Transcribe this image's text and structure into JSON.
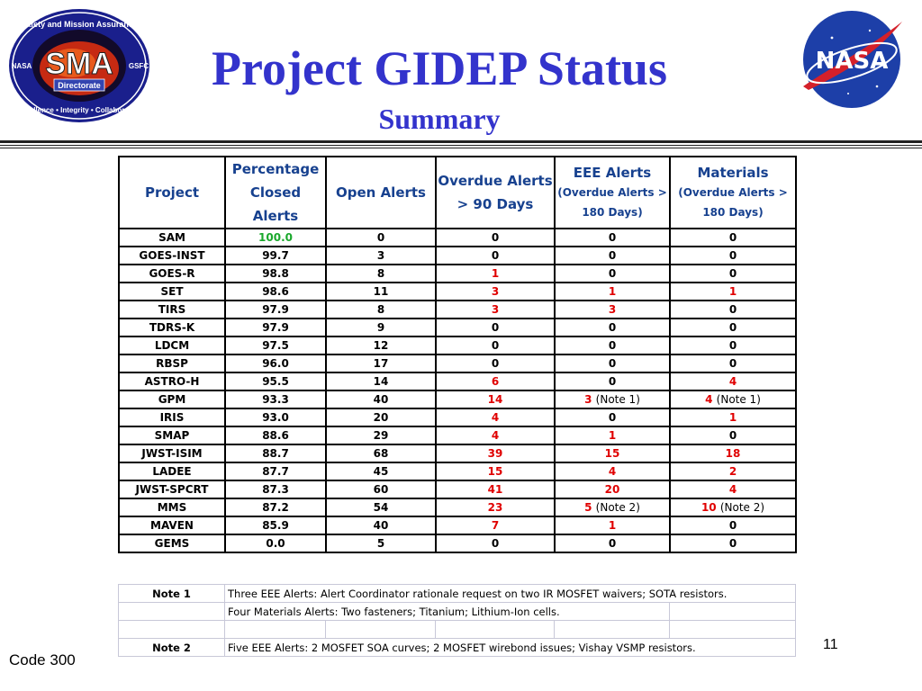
{
  "header": {
    "title": "Project GIDEP Status",
    "subtitle": "Summary"
  },
  "logos": {
    "sma": {
      "ring_top": "Safety and Mission Assurance",
      "ring_bottom": "Excellence • Integrity • Collaboration",
      "left": "NASA",
      "right": "GSFC",
      "center": "SMA",
      "banner": "Directorate"
    },
    "nasa": {
      "text": "NASA"
    }
  },
  "colors": {
    "title": "#3333cc",
    "header_text": "#17418f",
    "alert": "#e00000",
    "complete": "#1aa82c"
  },
  "table": {
    "columns": [
      {
        "label": "Project"
      },
      {
        "label": "Percentage Closed Alerts"
      },
      {
        "label": "Open Alerts"
      },
      {
        "label": "Overdue Alerts > 90 Days"
      },
      {
        "label": "EEE Alerts",
        "sub": "(Overdue Alerts > 180 Days)"
      },
      {
        "label": "Materials",
        "sub": "(Overdue Alerts  > 180 Days)"
      }
    ],
    "rows": [
      {
        "project": "SAM",
        "pct": "100.0",
        "open": "0",
        "overdue": "0",
        "eee": "0",
        "eee_note": "",
        "mat": "0",
        "mat_note": ""
      },
      {
        "project": "GOES-INST",
        "pct": "99.7",
        "open": "3",
        "overdue": "0",
        "eee": "0",
        "eee_note": "",
        "mat": "0",
        "mat_note": ""
      },
      {
        "project": "GOES-R",
        "pct": "98.8",
        "open": "8",
        "overdue": "1",
        "eee": "0",
        "eee_note": "",
        "mat": "0",
        "mat_note": ""
      },
      {
        "project": "SET",
        "pct": "98.6",
        "open": "11",
        "overdue": "3",
        "eee": "1",
        "eee_note": "",
        "mat": "1",
        "mat_note": ""
      },
      {
        "project": "TIRS",
        "pct": "97.9",
        "open": "8",
        "overdue": "3",
        "eee": "3",
        "eee_note": "",
        "mat": "0",
        "mat_note": ""
      },
      {
        "project": "TDRS-K",
        "pct": "97.9",
        "open": "9",
        "overdue": "0",
        "eee": "0",
        "eee_note": "",
        "mat": "0",
        "mat_note": ""
      },
      {
        "project": "LDCM",
        "pct": "97.5",
        "open": "12",
        "overdue": "0",
        "eee": "0",
        "eee_note": "",
        "mat": "0",
        "mat_note": ""
      },
      {
        "project": "RBSP",
        "pct": "96.0",
        "open": "17",
        "overdue": "0",
        "eee": "0",
        "eee_note": "",
        "mat": "0",
        "mat_note": ""
      },
      {
        "project": "ASTRO-H",
        "pct": "95.5",
        "open": "14",
        "overdue": "6",
        "eee": "0",
        "eee_note": "",
        "mat": "4",
        "mat_note": ""
      },
      {
        "project": "GPM",
        "pct": "93.3",
        "open": "40",
        "overdue": "14",
        "eee": "3",
        "eee_note": "(Note 1)",
        "mat": "4",
        "mat_note": "(Note 1)"
      },
      {
        "project": "IRIS",
        "pct": "93.0",
        "open": "20",
        "overdue": "4",
        "eee": "0",
        "eee_note": "",
        "mat": "1",
        "mat_note": ""
      },
      {
        "project": "SMAP",
        "pct": "88.6",
        "open": "29",
        "overdue": "4",
        "eee": "1",
        "eee_note": "",
        "mat": "0",
        "mat_note": ""
      },
      {
        "project": "JWST-ISIM",
        "pct": "88.7",
        "open": "68",
        "overdue": "39",
        "eee": "15",
        "eee_note": "",
        "mat": "18",
        "mat_note": ""
      },
      {
        "project": "LADEE",
        "pct": "87.7",
        "open": "45",
        "overdue": "15",
        "eee": "4",
        "eee_note": "",
        "mat": "2",
        "mat_note": ""
      },
      {
        "project": "JWST-SPCRT",
        "pct": "87.3",
        "open": "60",
        "overdue": "41",
        "eee": "20",
        "eee_note": "",
        "mat": "4",
        "mat_note": ""
      },
      {
        "project": "MMS",
        "pct": "87.2",
        "open": "54",
        "overdue": "23",
        "eee": "5",
        "eee_note": "(Note 2)",
        "mat": "10",
        "mat_note": "(Note 2)"
      },
      {
        "project": "MAVEN",
        "pct": "85.9",
        "open": "40",
        "overdue": "7",
        "eee": "1",
        "eee_note": "",
        "mat": "0",
        "mat_note": ""
      },
      {
        "project": "GEMS",
        "pct": "0.0",
        "open": "5",
        "overdue": "0",
        "eee": "0",
        "eee_note": "",
        "mat": "0",
        "mat_note": ""
      }
    ]
  },
  "notes": [
    {
      "label": "Note 1",
      "text": "Three EEE Alerts: Alert Coordinator rationale request on two IR MOSFET waivers; SOTA resistors."
    },
    {
      "label": "",
      "text": "Four Materials Alerts: Two fasteners; Titanium; Lithium-Ion cells."
    },
    {
      "label": "",
      "text": ""
    },
    {
      "label": "Note 2",
      "text": "Five EEE Alerts: 2 MOSFET SOA curves; 2 MOSFET wirebond issues; Vishay VSMP resistors."
    }
  ],
  "footer": {
    "left": "Code 300",
    "page": "11"
  }
}
